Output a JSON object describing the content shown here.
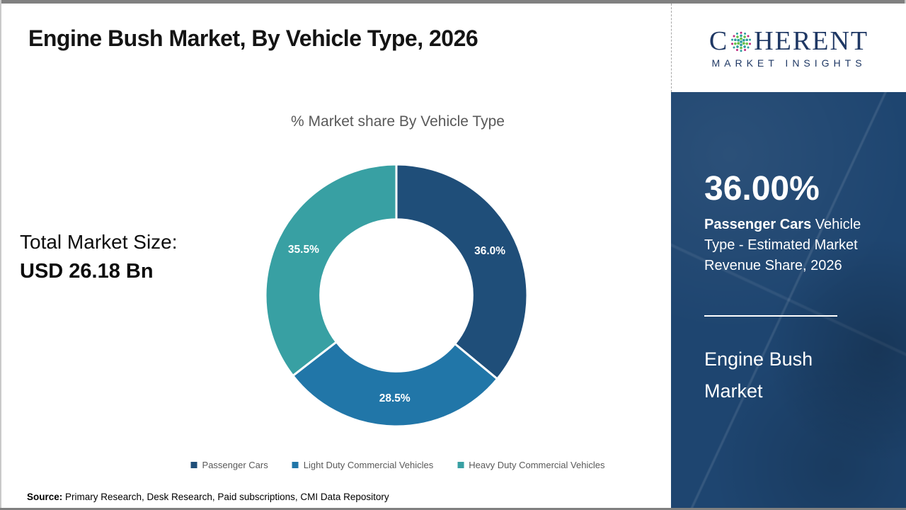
{
  "title": "Engine Bush Market, By Vehicle Type, 2026",
  "logo": {
    "brand_prefix": "C",
    "brand_suffix": "HERENT",
    "tagline": "MARKET INSIGHTS",
    "navy": "#1f3864",
    "globe_icon_colors": {
      "teal": "#2e9e9e",
      "green": "#6abf4b",
      "magenta": "#c0267e"
    }
  },
  "left_panel": {
    "total_label": "Total Market Size:",
    "total_value": "USD 26.18 Bn"
  },
  "chart_data": {
    "type": "pie",
    "subtype": "donut",
    "title": "% Market share By Vehicle Type",
    "categories": [
      "Passenger Cars",
      "Light Duty Commercial Vehicles",
      "Heavy Duty Commercial Vehicles"
    ],
    "values": [
      36.0,
      28.5,
      35.5
    ],
    "labels": [
      "36.0%",
      "28.5%",
      "35.5%"
    ],
    "colors": [
      "#1f4e79",
      "#2176a8",
      "#38a0a3"
    ],
    "start_angle_deg": 0,
    "direction": "clockwise",
    "inner_radius_ratio": 0.58,
    "label_color": "#ffffff",
    "legend_position": "bottom",
    "total_market_size": "USD 26.18 Bn"
  },
  "right_panel": {
    "stat_value": "36.00%",
    "stat_desc_bold": "Passenger Cars",
    "stat_desc_rest": " Vehicle Type - Estimated Market Revenue Share, 2026",
    "market_name": "Engine Bush Market",
    "background": "#1e4570"
  },
  "source": {
    "label": "Source:",
    "text": " Primary Research, Desk Research, Paid subscriptions, CMI Data Repository"
  }
}
